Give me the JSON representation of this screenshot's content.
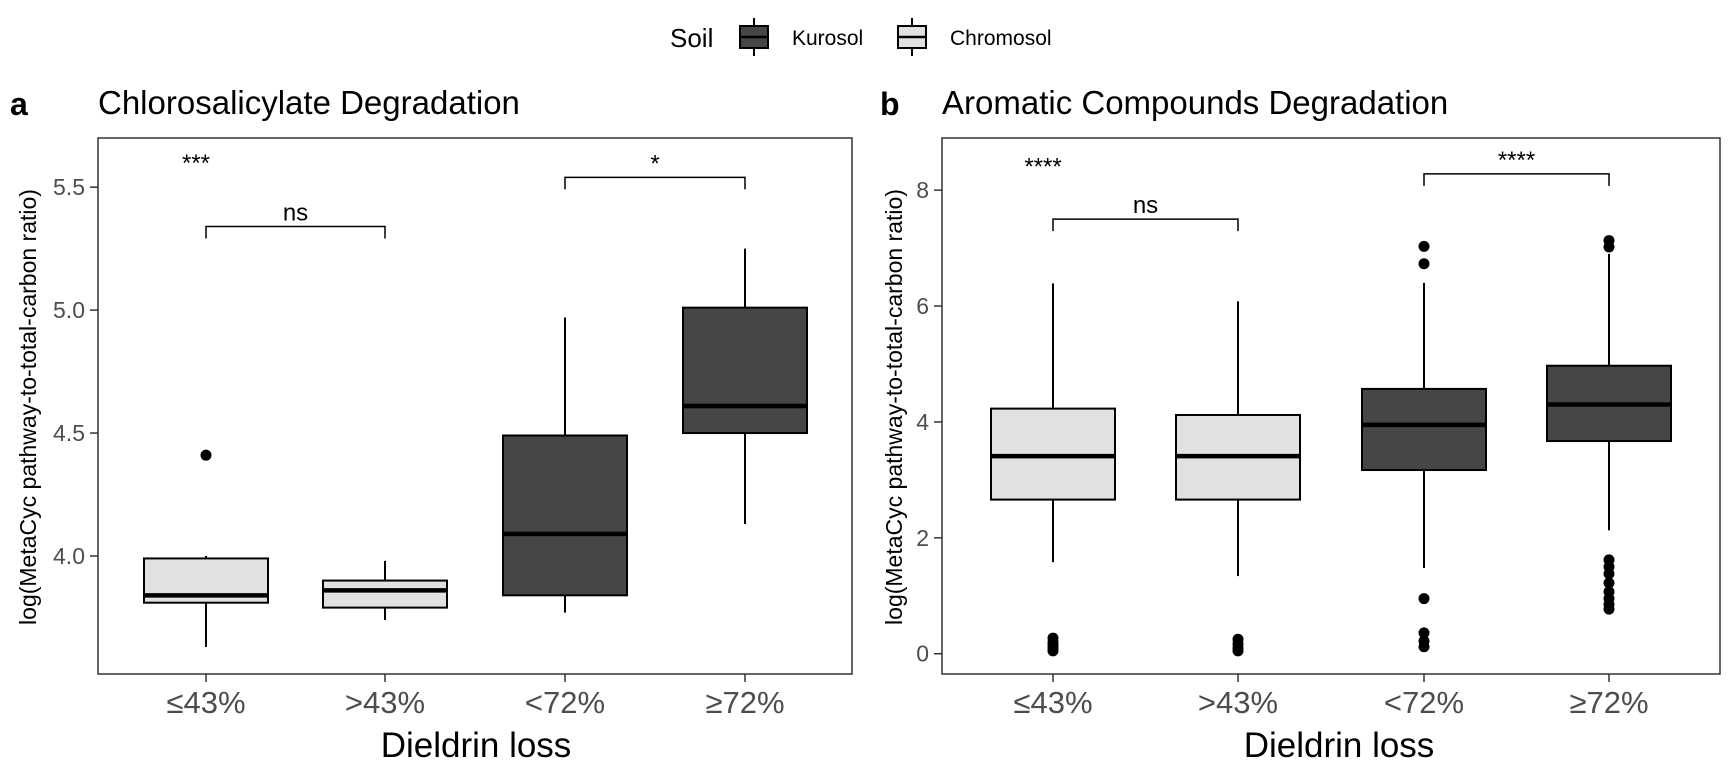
{
  "legend": {
    "title": "Soil",
    "entries": [
      {
        "name": "Kurosol",
        "color": "#464646"
      },
      {
        "name": "Chromosol",
        "color": "#e1e1e1"
      }
    ],
    "position": "top"
  },
  "chart_data": [
    {
      "type": "boxplot",
      "panel_label": "a",
      "title": "Chlorosalicylate Degradation",
      "xlabel": "Dieldrin loss",
      "ylabel": "log(MetaCyc pathway-to-total-carbon ratio)",
      "categories": [
        "≤43%",
        ">43%",
        "<72%",
        "≥72%"
      ],
      "ylim": [
        3.52,
        5.7
      ],
      "yticks": [
        4.0,
        4.5,
        5.0,
        5.5
      ],
      "ytick_labels": [
        "4.0",
        "4.5",
        "5.0",
        "5.5"
      ],
      "grid": false,
      "boxes": [
        {
          "category": "≤43%",
          "soil": "Chromosol",
          "whisker_low": 3.63,
          "q1": 3.81,
          "median": 3.84,
          "q3": 3.99,
          "whisker_high": 4.0,
          "outliers": [
            4.41
          ]
        },
        {
          "category": ">43%",
          "soil": "Chromosol",
          "whisker_low": 3.74,
          "q1": 3.79,
          "median": 3.86,
          "q3": 3.9,
          "whisker_high": 3.98,
          "outliers": []
        },
        {
          "category": "<72%",
          "soil": "Kurosol",
          "whisker_low": 3.77,
          "q1": 3.84,
          "median": 4.09,
          "q3": 4.49,
          "whisker_high": 4.97,
          "outliers": []
        },
        {
          "category": "≥72%",
          "soil": "Kurosol",
          "whisker_low": 4.13,
          "q1": 4.5,
          "median": 4.61,
          "q3": 5.01,
          "whisker_high": 5.25,
          "outliers": []
        }
      ],
      "significance": [
        {
          "label": "***",
          "from": 0,
          "to": 0,
          "y": 5.63,
          "bracket": false
        },
        {
          "label": "ns",
          "from": 0,
          "to": 1,
          "y": 5.34,
          "bracket": true
        },
        {
          "label": "*",
          "from": 2,
          "to": 3,
          "y": 5.54,
          "bracket": true
        }
      ]
    },
    {
      "type": "boxplot",
      "panel_label": "b",
      "title": "Aromatic Compounds Degradation",
      "xlabel": "Dieldrin loss",
      "ylabel": "log(MetaCyc pathway-to-total-carbon ratio)",
      "categories": [
        "≤43%",
        ">43%",
        "<72%",
        "≥72%"
      ],
      "ylim": [
        -0.35,
        8.9
      ],
      "yticks": [
        0,
        2,
        4,
        6,
        8
      ],
      "ytick_labels": [
        "0",
        "2",
        "4",
        "6",
        "8"
      ],
      "grid": false,
      "boxes": [
        {
          "category": "≤43%",
          "soil": "Chromosol",
          "whisker_low": 1.58,
          "q1": 2.66,
          "median": 3.41,
          "q3": 4.23,
          "whisker_high": 6.39,
          "outliers": [
            0.05,
            0.1,
            0.15,
            0.2,
            0.27
          ]
        },
        {
          "category": ">43%",
          "soil": "Chromosol",
          "whisker_low": 1.34,
          "q1": 2.66,
          "median": 3.41,
          "q3": 4.12,
          "whisker_high": 6.08,
          "outliers": [
            0.05,
            0.1,
            0.17,
            0.25
          ]
        },
        {
          "category": "<72%",
          "soil": "Kurosol",
          "whisker_low": 1.48,
          "q1": 3.17,
          "median": 3.95,
          "q3": 4.57,
          "whisker_high": 6.4,
          "outliers": [
            0.12,
            0.22,
            0.36,
            0.95,
            6.73,
            7.03
          ]
        },
        {
          "category": "≥72%",
          "soil": "Kurosol",
          "whisker_low": 2.13,
          "q1": 3.67,
          "median": 4.3,
          "q3": 4.97,
          "whisker_high": 6.9,
          "outliers": [
            0.77,
            0.85,
            0.95,
            1.07,
            1.22,
            1.38,
            1.5,
            1.62,
            7.02,
            7.13
          ]
        }
      ],
      "significance": [
        {
          "label": "****",
          "from": 0,
          "to": 0,
          "y": 8.55,
          "bracket": false
        },
        {
          "label": "ns",
          "from": 0,
          "to": 1,
          "y": 7.5,
          "bracket": true
        },
        {
          "label": "****",
          "from": 2,
          "to": 3,
          "y": 8.28,
          "bracket": true
        }
      ]
    }
  ]
}
